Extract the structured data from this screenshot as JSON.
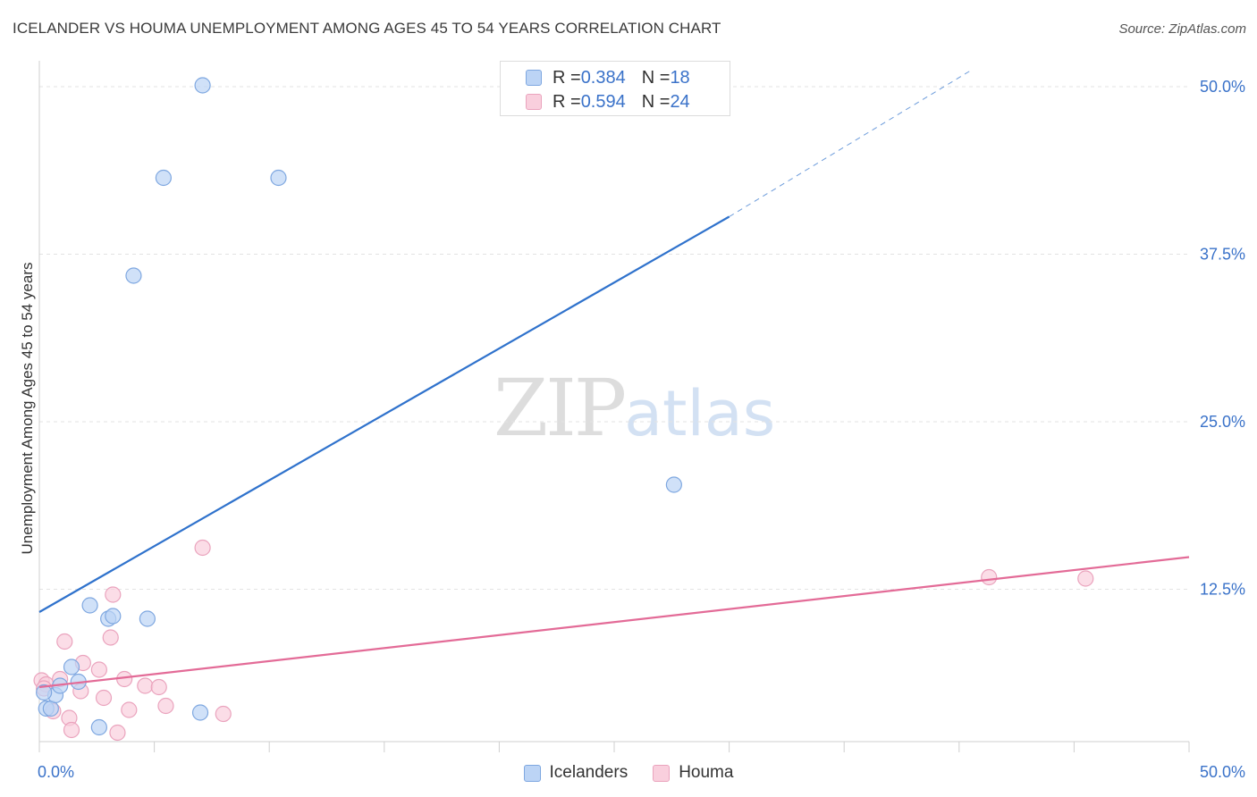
{
  "header": {
    "title": "ICELANDER VS HOUMA UNEMPLOYMENT AMONG AGES 45 TO 54 YEARS CORRELATION CHART",
    "source": "Source: ZipAtlas.com"
  },
  "watermark": {
    "zip": "ZIP",
    "atlas": "atlas"
  },
  "legend": {
    "rows": [
      {
        "r_label": "R = ",
        "r_value": "0.384",
        "n_label": "N = ",
        "n_value": "18"
      },
      {
        "r_label": "R = ",
        "r_value": "0.594",
        "n_label": "N = ",
        "n_value": "24"
      }
    ]
  },
  "bottom_legend": {
    "items": [
      "Icelanders",
      "Houma"
    ]
  },
  "colors": {
    "blue_fill": "#bcd4f5",
    "blue_stroke": "#7ea7e0",
    "blue_line": "#2f72cc",
    "pink_fill": "#f9cfdd",
    "pink_stroke": "#eaa3bd",
    "pink_line": "#e36b97",
    "tick_label": "#3a72c9",
    "grid": "#e3e3e3"
  },
  "chart_data": {
    "type": "scatter",
    "title": "ICELANDER VS HOUMA UNEMPLOYMENT AMONG AGES 45 TO 54 YEARS CORRELATION CHART",
    "xlabel": "",
    "ylabel": "Unemployment Among Ages 45 to 54 years",
    "xlim": [
      0,
      50
    ],
    "ylim": [
      0,
      50
    ],
    "x_tick_labels": [
      "0.0%",
      "50.0%"
    ],
    "y_ticks": [
      12.5,
      25.0,
      37.5,
      50.0
    ],
    "y_tick_labels": [
      "12.5%",
      "25.0%",
      "37.5%",
      "50.0%"
    ],
    "grid": true,
    "legend_position": "top-center",
    "series": [
      {
        "name": "Icelanders",
        "r": 0.384,
        "n": 18,
        "points": [
          [
            0.3,
            3.6
          ],
          [
            0.5,
            3.6
          ],
          [
            0.7,
            4.6
          ],
          [
            0.9,
            5.3
          ],
          [
            1.4,
            6.7
          ],
          [
            1.7,
            5.6
          ],
          [
            2.2,
            11.3
          ],
          [
            2.6,
            2.2
          ],
          [
            3.0,
            10.3
          ],
          [
            3.2,
            10.5
          ],
          [
            4.1,
            35.9
          ],
          [
            4.7,
            10.3
          ],
          [
            5.4,
            43.2
          ],
          [
            7.0,
            3.3
          ],
          [
            7.1,
            50.1
          ],
          [
            10.4,
            43.2
          ],
          [
            27.6,
            20.3
          ],
          [
            0.2,
            4.8
          ]
        ],
        "trend": {
          "x0": 0.0,
          "y0": 10.8,
          "x1": 30.0,
          "y1": 40.3,
          "dash_to_x": 40.5,
          "dash_to_y": 51.2
        }
      },
      {
        "name": "Houma",
        "r": 0.594,
        "n": 24,
        "points": [
          [
            0.1,
            5.7
          ],
          [
            0.3,
            5.4
          ],
          [
            0.6,
            3.4
          ],
          [
            0.9,
            5.8
          ],
          [
            1.1,
            8.6
          ],
          [
            1.3,
            2.9
          ],
          [
            1.4,
            2.0
          ],
          [
            1.8,
            4.9
          ],
          [
            1.9,
            7.0
          ],
          [
            2.6,
            6.5
          ],
          [
            2.8,
            4.4
          ],
          [
            3.1,
            8.9
          ],
          [
            3.2,
            12.1
          ],
          [
            3.4,
            1.8
          ],
          [
            3.7,
            5.8
          ],
          [
            3.9,
            3.5
          ],
          [
            4.6,
            5.3
          ],
          [
            5.2,
            5.2
          ],
          [
            5.5,
            3.8
          ],
          [
            7.1,
            15.6
          ],
          [
            8.0,
            3.2
          ],
          [
            41.3,
            13.4
          ],
          [
            45.5,
            13.3
          ],
          [
            0.2,
            5.1
          ]
        ],
        "trend": {
          "x0": 0.0,
          "y0": 5.2,
          "x1": 50.0,
          "y1": 14.9
        }
      }
    ]
  }
}
